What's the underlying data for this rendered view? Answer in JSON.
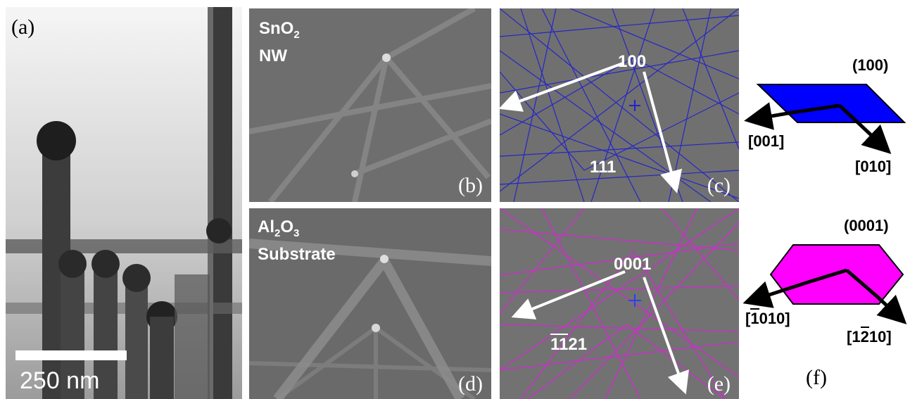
{
  "panels": {
    "a": {
      "label": "(a)",
      "scale_bar": "250 nm"
    },
    "b": {
      "label": "(b)",
      "title_line1": "SnO",
      "title_sub": "2",
      "title_line2": "NW"
    },
    "c": {
      "label": "(c)",
      "pole_main": "100",
      "pole_second": "111",
      "line_color": "#2222cc"
    },
    "d": {
      "label": "(d)",
      "title_line1_a": "Al",
      "title_sub_a": "2",
      "title_line1_b": "O",
      "title_sub_b": "3",
      "title_line2": "Substrate"
    },
    "e": {
      "label": "(e)",
      "pole_main": "0001",
      "pole_second_over": "11",
      "pole_second_rest": "21",
      "line_color": "#dd22dd"
    },
    "f": {
      "label": "(f)",
      "top": {
        "plane": "(100)",
        "dir_left": "[001]",
        "dir_right": "[010]",
        "fill": "#0000ff"
      },
      "bottom": {
        "plane": "(0001)",
        "dir_left_over": "1",
        "dir_left_rest": "010",
        "dir_right_pre": "1",
        "dir_right_over": "2",
        "dir_right_rest": "10",
        "fill": "#ff00ff"
      }
    }
  }
}
